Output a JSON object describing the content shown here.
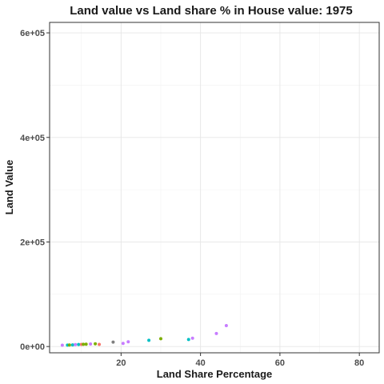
{
  "chart_data": {
    "type": "scatter",
    "title": "Land value vs Land share % in House value: 1975",
    "xlabel": "Land Share Percentage",
    "ylabel": "Land Value",
    "xlim": [
      2,
      85
    ],
    "ylim": [
      -12000,
      620000
    ],
    "x_ticks": [
      20,
      40,
      60,
      80
    ],
    "x_tick_labels": [
      "20",
      "40",
      "60",
      "80"
    ],
    "y_ticks": [
      0,
      200000,
      400000,
      600000
    ],
    "y_tick_labels": [
      "0e+00",
      "2e+05",
      "4e+05",
      "6e+05"
    ],
    "grid": true,
    "legend": "none",
    "points": [
      {
        "x": 5.2,
        "y": 2500,
        "color": "#C77CFF"
      },
      {
        "x": 6.5,
        "y": 2800,
        "color": "#00BFC4"
      },
      {
        "x": 7.0,
        "y": 3000,
        "color": "#7CAE00"
      },
      {
        "x": 7.8,
        "y": 3200,
        "color": "#00BFC4"
      },
      {
        "x": 8.5,
        "y": 3600,
        "color": "#C77CFF"
      },
      {
        "x": 9.3,
        "y": 3800,
        "color": "#00BFC4"
      },
      {
        "x": 10.0,
        "y": 4000,
        "color": "#F8766D"
      },
      {
        "x": 10.5,
        "y": 4200,
        "color": "#7CAE00"
      },
      {
        "x": 11.2,
        "y": 4500,
        "color": "#7CAE00"
      },
      {
        "x": 12.3,
        "y": 4800,
        "color": "#C77CFF"
      },
      {
        "x": 13.5,
        "y": 5200,
        "color": "#7CAE00"
      },
      {
        "x": 14.5,
        "y": 4000,
        "color": "#F8766D"
      },
      {
        "x": 18.0,
        "y": 8500,
        "color": "#7F7F7F"
      },
      {
        "x": 20.5,
        "y": 6000,
        "color": "#C77CFF"
      },
      {
        "x": 21.8,
        "y": 9000,
        "color": "#C77CFF"
      },
      {
        "x": 27.0,
        "y": 12000,
        "color": "#00BFC4"
      },
      {
        "x": 30.0,
        "y": 15000,
        "color": "#7CAE00"
      },
      {
        "x": 37.0,
        "y": 13500,
        "color": "#00BFC4"
      },
      {
        "x": 38.0,
        "y": 16000,
        "color": "#C77CFF"
      },
      {
        "x": 44.0,
        "y": 25000,
        "color": "#C77CFF"
      },
      {
        "x": 46.5,
        "y": 40000,
        "color": "#C77CFF"
      }
    ]
  }
}
